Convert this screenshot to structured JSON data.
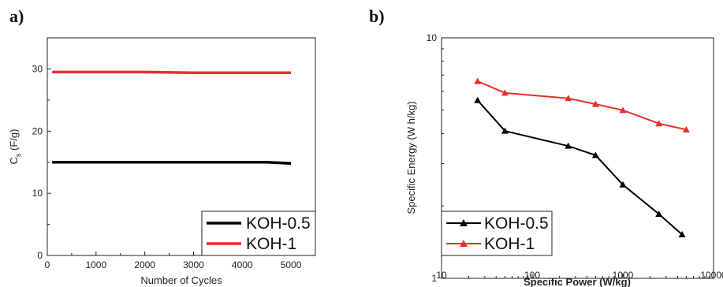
{
  "figure": {
    "panel_a_label": "a)",
    "panel_b_label": "b)"
  },
  "chart_data": [
    {
      "type": "line",
      "panel": "a)",
      "xlabel": "Number of Cycles",
      "ylabel": "C_s (F/g)",
      "ylabel_main": "C",
      "ylabel_sub": "s",
      "ylabel_rest": " (F/g)",
      "xlim": [
        0,
        5500
      ],
      "ylim": [
        0,
        35
      ],
      "xticks": [
        0,
        1000,
        2000,
        3000,
        4000,
        5000
      ],
      "yticks": [
        0,
        10,
        20,
        30
      ],
      "legend_position": "bottom-right",
      "series": [
        {
          "name": "KOH-0.5",
          "color": "#000000",
          "x": [
            100,
            1000,
            2000,
            3000,
            4000,
            4500,
            5000
          ],
          "y": [
            15.0,
            15.0,
            15.0,
            15.0,
            15.0,
            15.0,
            14.8
          ]
        },
        {
          "name": "KOH-1",
          "color": "#e8302b",
          "x": [
            100,
            1000,
            2000,
            3000,
            4000,
            5000
          ],
          "y": [
            29.5,
            29.5,
            29.5,
            29.4,
            29.4,
            29.4
          ]
        }
      ]
    },
    {
      "type": "line",
      "panel": "b)",
      "xlabel": "Specific Power (W/kg)",
      "ylabel": "Specific Energy (W h/kg)",
      "xscale": "log",
      "yscale": "log",
      "xlim": [
        10,
        10000
      ],
      "ylim": [
        1,
        10
      ],
      "xticks": [
        10,
        100,
        1000,
        10000
      ],
      "xtick_labels": [
        "10",
        "100",
        "1000",
        "10000"
      ],
      "yticks": [
        1,
        10
      ],
      "ytick_labels": [
        "1",
        "10"
      ],
      "legend_position": "bottom-left",
      "series": [
        {
          "name": "KOH-0.5",
          "color": "#000000",
          "marker": "triangle",
          "x": [
            25,
            50,
            250,
            500,
            1000,
            2500,
            4500
          ],
          "y": [
            5.5,
            4.1,
            3.55,
            3.25,
            2.45,
            1.85,
            1.52
          ]
        },
        {
          "name": "KOH-1",
          "color": "#e8302b",
          "marker": "triangle",
          "x": [
            25,
            50,
            250,
            500,
            1000,
            2500,
            5000
          ],
          "y": [
            6.6,
            5.9,
            5.6,
            5.3,
            5.0,
            4.4,
            4.15
          ]
        }
      ]
    }
  ]
}
